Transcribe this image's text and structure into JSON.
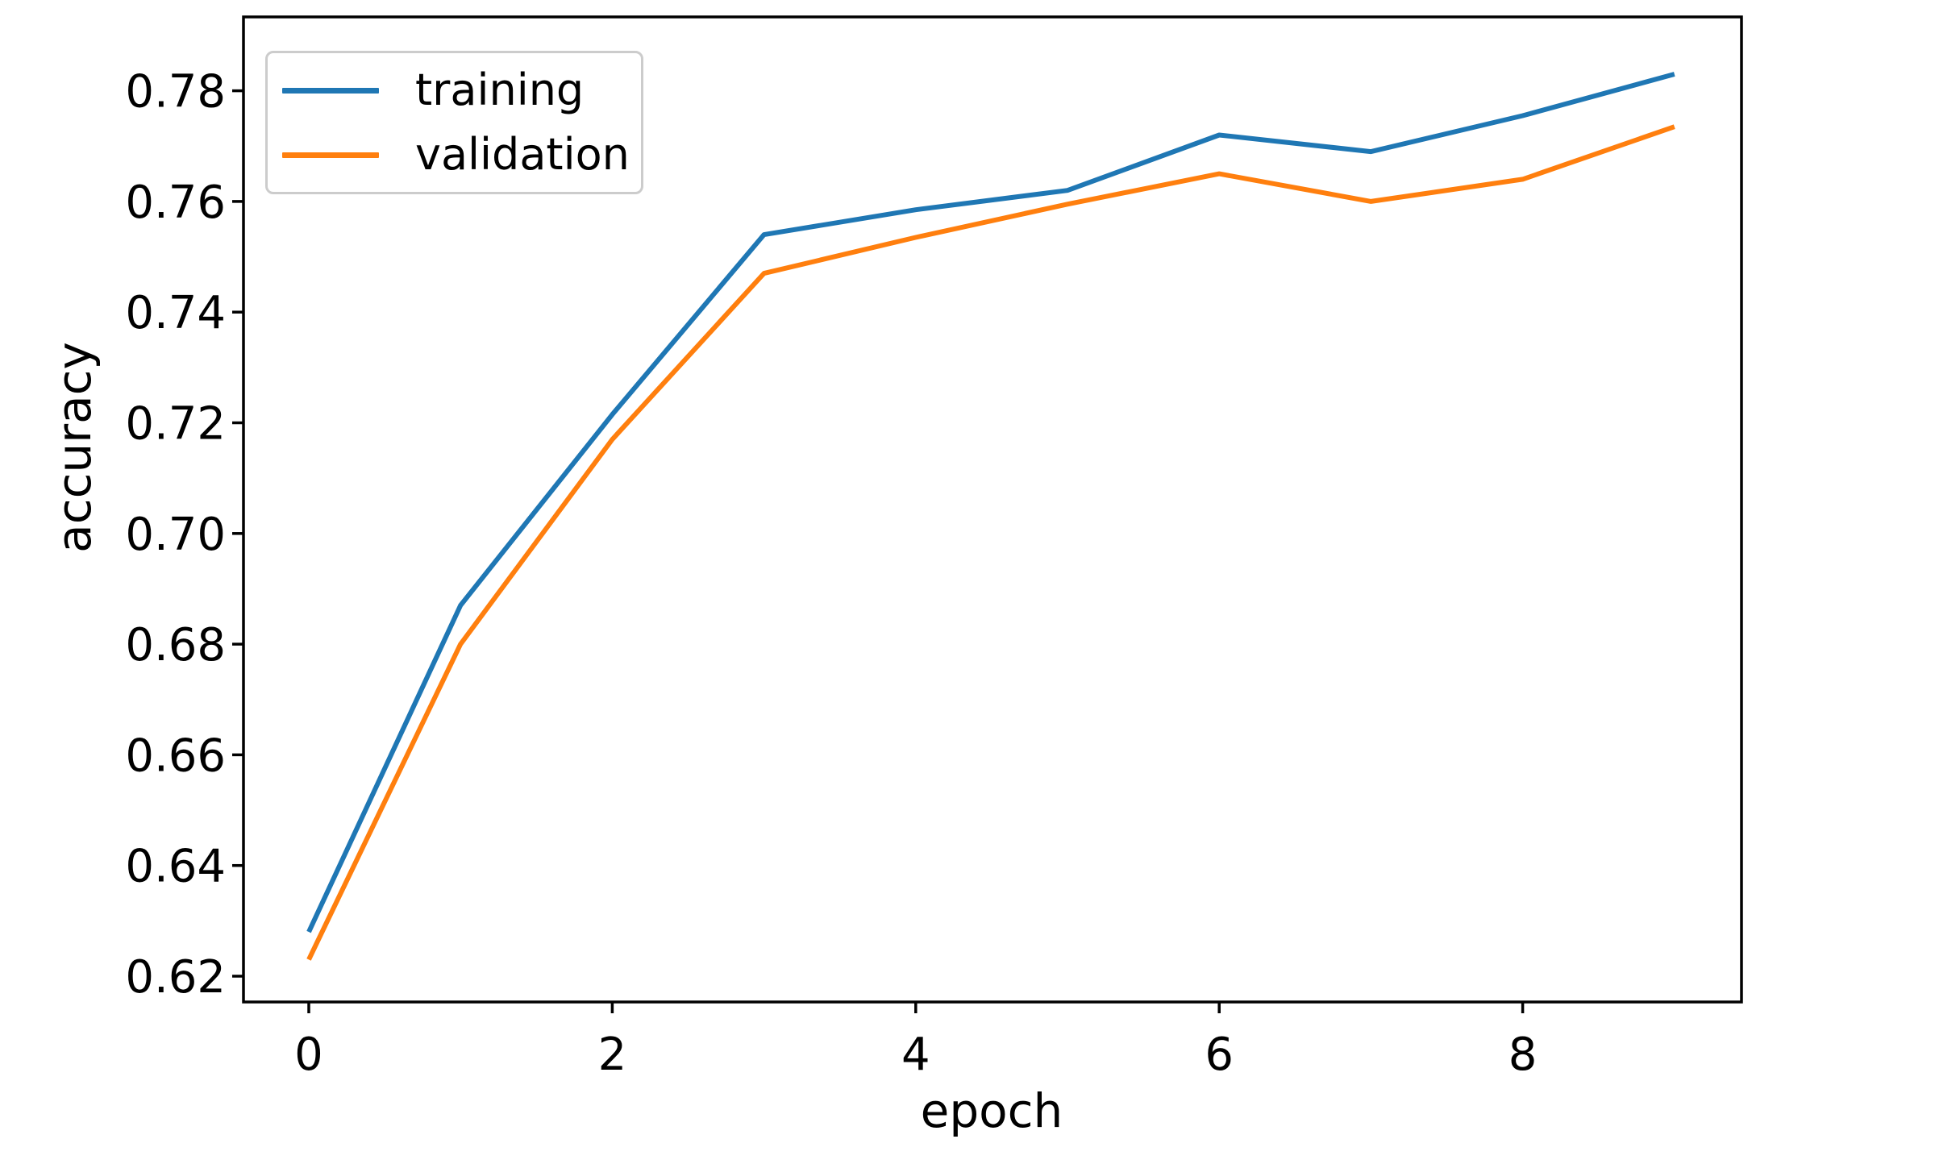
{
  "chart_data": {
    "type": "line",
    "title": "",
    "xlabel": "epoch",
    "ylabel": "accuracy",
    "x": [
      0,
      1,
      2,
      3,
      4,
      5,
      6,
      7,
      8,
      9
    ],
    "series": [
      {
        "name": "training",
        "color": "#1f77b4",
        "values": [
          0.628,
          0.687,
          0.7215,
          0.754,
          0.7585,
          0.762,
          0.772,
          0.769,
          0.7755,
          0.783
        ]
      },
      {
        "name": "validation",
        "color": "#ff7f0e",
        "values": [
          0.623,
          0.68,
          0.717,
          0.747,
          0.7535,
          0.7595,
          0.765,
          0.76,
          0.764,
          0.7735
        ]
      }
    ],
    "xticks": [
      0,
      2,
      4,
      6,
      8
    ],
    "xtick_labels": [
      "0",
      "2",
      "4",
      "6",
      "8"
    ],
    "yticks": [
      0.62,
      0.64,
      0.66,
      0.68,
      0.7,
      0.72,
      0.74,
      0.76,
      0.78
    ],
    "ytick_labels": [
      "0.62",
      "0.64",
      "0.66",
      "0.68",
      "0.70",
      "0.72",
      "0.74",
      "0.76",
      "0.78"
    ],
    "xlim": [
      -0.43,
      9.44
    ],
    "ylim": [
      0.6153,
      0.7935
    ],
    "grid": false,
    "legend": {
      "position": "upper left",
      "entries": [
        "training",
        "validation"
      ]
    }
  },
  "colors": {
    "text": "#000000",
    "spine": "#000000",
    "legend_border": "#cccccc",
    "background": "#ffffff"
  }
}
